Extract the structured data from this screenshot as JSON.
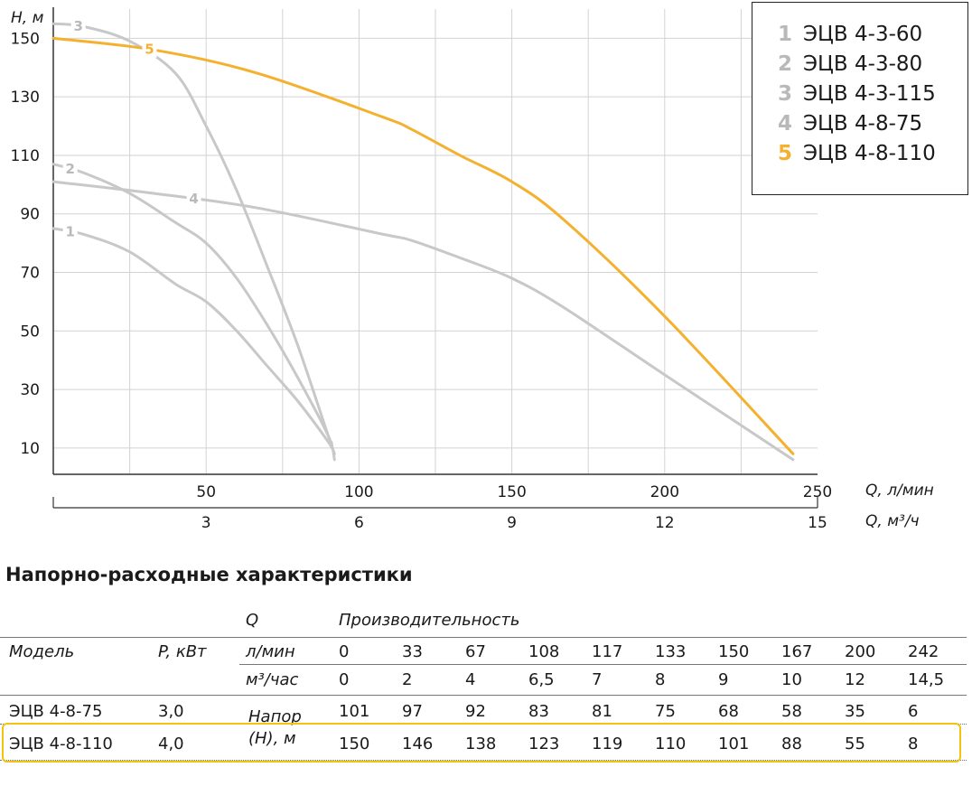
{
  "chart_data": {
    "type": "line",
    "ylabel": "H, м",
    "xlabel": "Q, л/мин",
    "x2label": "Q, м³/ч",
    "xlim": [
      0,
      250
    ],
    "ylim": [
      1,
      160
    ],
    "x_ticks": [
      "50",
      "100",
      "150",
      "200",
      "250"
    ],
    "x2_ticks": [
      "3",
      "6",
      "9",
      "12",
      "15"
    ],
    "y_ticks": [
      "10",
      "30",
      "50",
      "70",
      "90",
      "110",
      "130",
      "150"
    ],
    "grid": true,
    "colors": {
      "gray": "#c8c8c8",
      "accent": "#f4b12f",
      "label_gray": "#b9b9b9"
    },
    "series": [
      {
        "name": "ЭЦВ 4-3-60",
        "label": "1",
        "color": "#c8c8c8",
        "points": [
          [
            0,
            85
          ],
          [
            10,
            83
          ],
          [
            25,
            77
          ],
          [
            40,
            66
          ],
          [
            50,
            60
          ],
          [
            60,
            50
          ],
          [
            70,
            38
          ],
          [
            80,
            26
          ],
          [
            90,
            12
          ],
          [
            92,
            8
          ]
        ]
      },
      {
        "name": "ЭЦВ 4-3-80",
        "label": "2",
        "color": "#c8c8c8",
        "points": [
          [
            0,
            107
          ],
          [
            10,
            104
          ],
          [
            25,
            97
          ],
          [
            40,
            87
          ],
          [
            50,
            80
          ],
          [
            60,
            68
          ],
          [
            70,
            52
          ],
          [
            80,
            34
          ],
          [
            90,
            14
          ],
          [
            92,
            6
          ]
        ]
      },
      {
        "name": "ЭЦВ 4-3-115",
        "label": "3",
        "color": "#c8c8c8",
        "points": [
          [
            0,
            155
          ],
          [
            10,
            154
          ],
          [
            25,
            149
          ],
          [
            40,
            138
          ],
          [
            50,
            120
          ],
          [
            60,
            98
          ],
          [
            70,
            72
          ],
          [
            80,
            45
          ],
          [
            90,
            14
          ],
          [
            91,
            12
          ]
        ]
      },
      {
        "name": "ЭЦВ 4-8-75",
        "label": "4",
        "color": "#c8c8c8",
        "points": [
          [
            0,
            101
          ],
          [
            33,
            97
          ],
          [
            67,
            92
          ],
          [
            108,
            83
          ],
          [
            117,
            81
          ],
          [
            133,
            75
          ],
          [
            150,
            68
          ],
          [
            167,
            58
          ],
          [
            200,
            35
          ],
          [
            242,
            6
          ]
        ]
      },
      {
        "name": "ЭЦВ 4-8-110",
        "label": "5",
        "color": "#f4b12f",
        "points": [
          [
            0,
            150
          ],
          [
            33,
            146
          ],
          [
            67,
            138
          ],
          [
            108,
            123
          ],
          [
            117,
            119
          ],
          [
            133,
            110
          ],
          [
            150,
            101
          ],
          [
            167,
            88
          ],
          [
            200,
            55
          ],
          [
            242,
            8
          ]
        ]
      }
    ]
  },
  "table": {
    "title": "Напорно-расходные характеристики",
    "h_q": "Q",
    "h_perf": "Производительность",
    "h_model": "Модель",
    "h_power": "P, кВт",
    "h_lmin": "л/мин",
    "h_m3": "м³/час",
    "lmin": [
      "0",
      "33",
      "67",
      "108",
      "117",
      "133",
      "150",
      "167",
      "200",
      "242"
    ],
    "m3": [
      "0",
      "2",
      "4",
      "6,5",
      "7",
      "8",
      "9",
      "10",
      "12",
      "14,5"
    ],
    "h_head_1": "Напор",
    "h_head_2": "(H), м",
    "rows": [
      {
        "model": "ЭЦВ 4-8-75",
        "power": "3,0",
        "values": [
          "101",
          "97",
          "92",
          "83",
          "81",
          "75",
          "68",
          "58",
          "35",
          "6"
        ]
      },
      {
        "model": "ЭЦВ 4-8-110",
        "power": "4,0",
        "values": [
          "150",
          "146",
          "138",
          "123",
          "119",
          "110",
          "101",
          "88",
          "55",
          "8"
        ]
      }
    ]
  }
}
